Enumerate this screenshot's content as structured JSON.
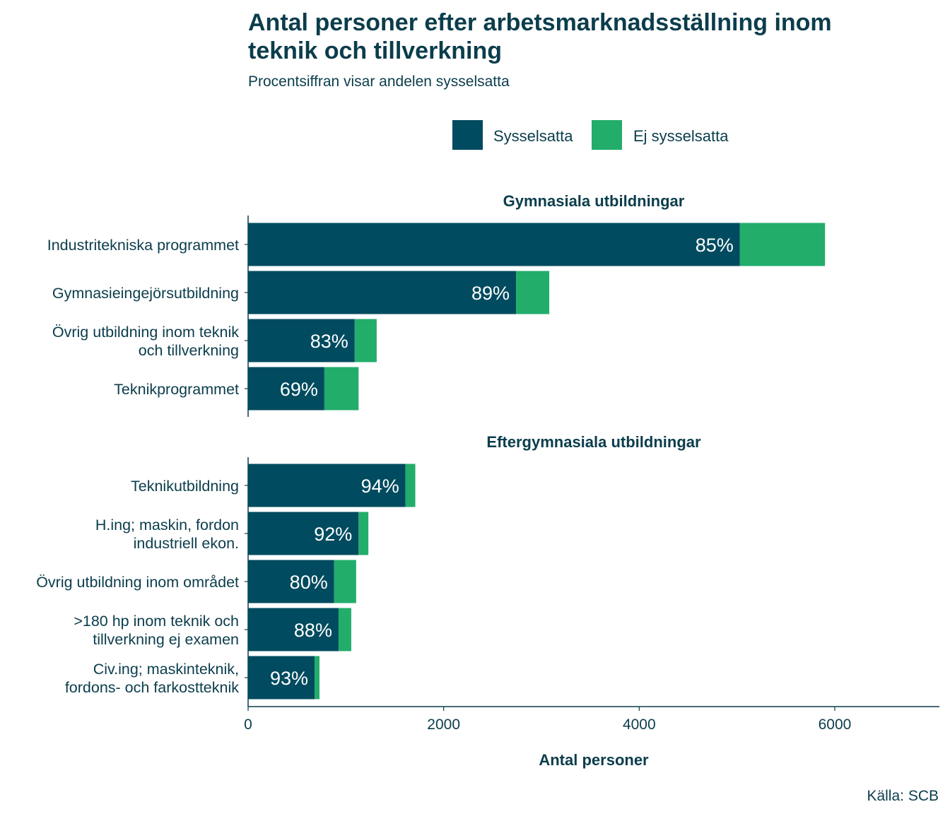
{
  "chart_data": {
    "type": "bar",
    "orientation": "horizontal",
    "stacked": true,
    "title": [
      "Antal personer efter arbetsmarknadsställning inom",
      "teknik och tillverkning"
    ],
    "subtitle": "Procentsiffran visar andelen sysselsatta",
    "xlabel": "Antal personer",
    "xlim": [
      0,
      7070
    ],
    "xticks": [
      0,
      2000,
      4000,
      6000
    ],
    "caption": "Källa: SCB",
    "colors": {
      "Sysselsatta": "#004B5F",
      "Ej sysselsatta": "#22AD6B"
    },
    "legend": {
      "position": "top",
      "entries": [
        "Sysselsatta",
        "Ej sysselsatta"
      ]
    },
    "panels": [
      {
        "title": "Gymnasiala utbildningar",
        "categories": [
          [
            "Industritekniska programmet"
          ],
          [
            "Gymnasieingejörsutbildning"
          ],
          [
            "Övrig utbildning inom teknik",
            "och tillverkning"
          ],
          [
            "Teknikprogrammet"
          ]
        ],
        "series": [
          {
            "name": "Sysselsatta",
            "values": [
              5030,
              2740,
              1090,
              780
            ]
          },
          {
            "name": "Ej sysselsatta",
            "values": [
              870,
              340,
              225,
              350
            ]
          }
        ],
        "labels": [
          "85%",
          "89%",
          "83%",
          "69%"
        ]
      },
      {
        "title": "Eftergymnasiala utbildningar",
        "categories": [
          [
            "Teknikutbildning"
          ],
          [
            "H.ing; maskin, fordon",
            "industriell ekon."
          ],
          [
            "Övrig utbildning inom området"
          ],
          [
            ">180 hp inom teknik och",
            "tillverkning ej examen"
          ],
          [
            "Civ.ing; maskinteknik,",
            "fordons- och farkostteknik"
          ]
        ],
        "series": [
          {
            "name": "Sysselsatta",
            "values": [
              1610,
              1130,
              880,
              925,
              680
            ]
          },
          {
            "name": "Ej sysselsatta",
            "values": [
              100,
              100,
              225,
              130,
              50
            ]
          }
        ],
        "labels": [
          "94%",
          "92%",
          "80%",
          "88%",
          "93%"
        ]
      }
    ]
  }
}
